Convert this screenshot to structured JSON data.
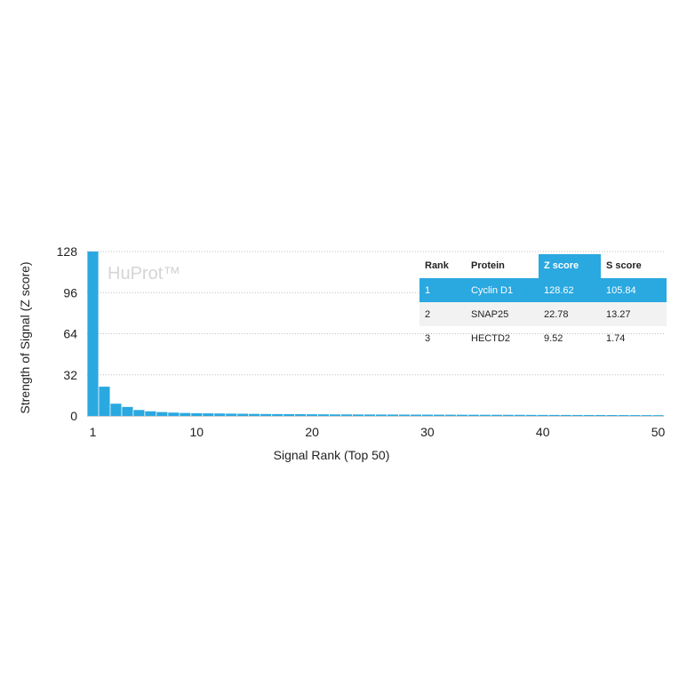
{
  "chart_data": {
    "type": "bar",
    "xlabel": "Signal Rank (Top 50)",
    "ylabel": "Strength of Signal (Z score)",
    "watermark": "HuProt™",
    "ylim": [
      0,
      128
    ],
    "yticks": [
      0,
      32,
      64,
      96,
      128
    ],
    "xticks": [
      1,
      10,
      20,
      30,
      40,
      50
    ],
    "xlim": [
      1,
      50
    ],
    "grid": true,
    "bar_color": "#2aa8e0",
    "x": [
      1,
      2,
      3,
      4,
      5,
      6,
      7,
      8,
      9,
      10,
      11,
      12,
      13,
      14,
      15,
      16,
      17,
      18,
      19,
      20,
      21,
      22,
      23,
      24,
      25,
      26,
      27,
      28,
      29,
      30,
      31,
      32,
      33,
      34,
      35,
      36,
      37,
      38,
      39,
      40,
      41,
      42,
      43,
      44,
      45,
      46,
      47,
      48,
      49,
      50
    ],
    "values": [
      128.62,
      22.78,
      9.52,
      7.0,
      4.6,
      3.6,
      3.0,
      2.6,
      2.3,
      2.1,
      2.0,
      1.9,
      1.8,
      1.7,
      1.6,
      1.5,
      1.45,
      1.4,
      1.35,
      1.3,
      1.25,
      1.2,
      1.18,
      1.15,
      1.12,
      1.1,
      1.08,
      1.05,
      1.02,
      1.0,
      0.98,
      0.96,
      0.94,
      0.92,
      0.9,
      0.88,
      0.86,
      0.84,
      0.82,
      0.8,
      0.78,
      0.76,
      0.74,
      0.72,
      0.7,
      0.68,
      0.66,
      0.64,
      0.62,
      0.6
    ]
  },
  "table": {
    "columns": [
      "Rank",
      "Protein",
      "Z score",
      "S score"
    ],
    "highlight_color": "#2aa8e0",
    "rows": [
      [
        "1",
        "Cyclin D1",
        "128.62",
        "105.84"
      ],
      [
        "2",
        "SNAP25",
        "22.78",
        "13.27"
      ],
      [
        "3",
        "HECTD2",
        "9.52",
        "1.74"
      ]
    ]
  }
}
